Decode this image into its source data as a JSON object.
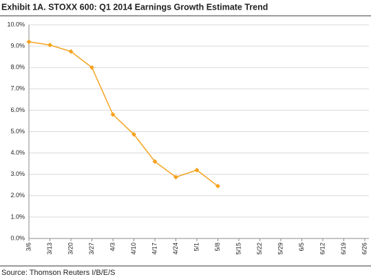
{
  "chart_data": {
    "type": "line",
    "title": "Exhibit 1A.  STOXX 600: Q1 2014 Earnings Growth Estimate Trend",
    "source": "Source: Thomson Reuters I/B/E/S",
    "categories": [
      "3/6",
      "3/13",
      "3/20",
      "3/27",
      "4/3",
      "4/10",
      "4/17",
      "4/24",
      "5/1",
      "5/8",
      "5/15",
      "5/22",
      "5/29",
      "6/5",
      "6/12",
      "6/19",
      "6/26"
    ],
    "series": [
      {
        "name": "STOXX 600 Q1 2014 earnings growth estimate",
        "color": "#f5a21e",
        "values": [
          9.2,
          9.05,
          8.75,
          8.0,
          5.8,
          4.87,
          3.6,
          2.87,
          3.2,
          2.45,
          null,
          null,
          null,
          null,
          null,
          null,
          null
        ]
      }
    ],
    "ylim": [
      0,
      10
    ],
    "yticks": [
      {
        "value": 0,
        "label": "0.0%"
      },
      {
        "value": 1,
        "label": "1.0%"
      },
      {
        "value": 2,
        "label": "2.0%"
      },
      {
        "value": 3,
        "label": "3.0%"
      },
      {
        "value": 4,
        "label": "4.0%"
      },
      {
        "value": 5,
        "label": "5.0%"
      },
      {
        "value": 6,
        "label": "6.0%"
      },
      {
        "value": 7,
        "label": "7.0%"
      },
      {
        "value": 8,
        "label": "8.0%"
      },
      {
        "value": 9,
        "label": "9.0%"
      },
      {
        "value": 10,
        "label": "10.0%"
      }
    ],
    "grid": true
  }
}
